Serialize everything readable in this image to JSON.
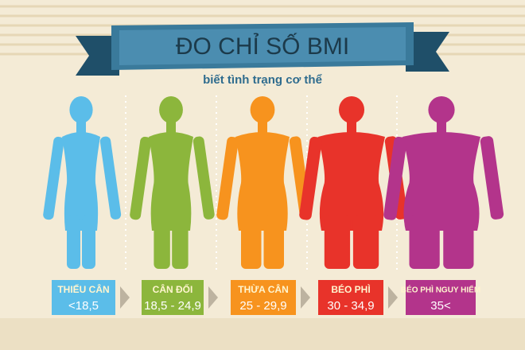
{
  "header": {
    "title": "ĐO CHỈ SỐ BMI",
    "subtitle": "biết tình trạng cơ thể"
  },
  "levels": [
    {
      "label": "THIẾU CÂN",
      "range": "<18,5"
    },
    {
      "label": "CÂN ĐỐI",
      "range": "18,5 - 24,9"
    },
    {
      "label": "THỪA CÂN",
      "range": "25 - 29,9"
    },
    {
      "label": "BÉO PHÌ",
      "range": "30 - 34,9"
    },
    {
      "label": "BÉO PHÌ NGUY HIỂM",
      "range": "35<"
    }
  ]
}
